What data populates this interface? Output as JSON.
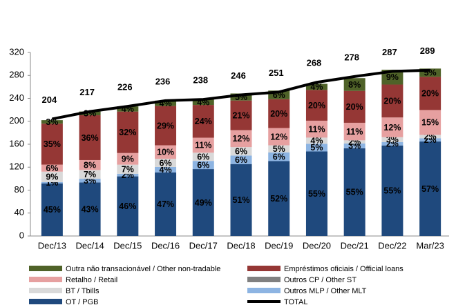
{
  "chart_data": {
    "type": "stacked_bar",
    "categories": [
      "Dec/13",
      "Dec/14",
      "Dec/15",
      "Dec/16",
      "Dec/17",
      "Dec/18",
      "Dec/19",
      "Dec/20",
      "Dec/21",
      "Dec/22",
      "Mar/23"
    ],
    "series": [
      {
        "name": "OT / PGB",
        "color": "#1f497d",
        "label_color": "#ffffff",
        "values": [
          45,
          43,
          46,
          47,
          49,
          51,
          52,
          55,
          55,
          55,
          57
        ],
        "value_labels": [
          "45%",
          "43%",
          "46%",
          "47%",
          "49%",
          "51%",
          "52%",
          "55%",
          "55%",
          "55%",
          "57%"
        ]
      },
      {
        "name": "Outros MLP / Other MLT",
        "color": "#8db4e2",
        "label_color": "#ffffff",
        "values": [
          1,
          3,
          2,
          4,
          6,
          6,
          6,
          5,
          3,
          2,
          2
        ],
        "value_labels": [
          "1%",
          "3%",
          "2%",
          "4%",
          "6%",
          "6%",
          "6%",
          "5%",
          "3%",
          "2%",
          "2%"
        ]
      },
      {
        "name": "BT / Tbills",
        "color": "#d9d9d9",
        "label_color": "#000000",
        "values": [
          9,
          7,
          7,
          6,
          6,
          6,
          5,
          4,
          2,
          3,
          2
        ],
        "value_labels": [
          "9%",
          "7%",
          "7%",
          "6%",
          "6%",
          "6%",
          "5%",
          "4%",
          "2%",
          "3%",
          "2%"
        ]
      },
      {
        "name": "Outros CP / Other ST",
        "color": "#808080",
        "label_color": "#ffffff",
        "values": [
          null,
          null,
          null,
          null,
          null,
          null,
          null,
          null,
          null,
          null,
          null
        ],
        "value_labels": [
          null,
          null,
          null,
          null,
          null,
          null,
          null,
          null,
          null,
          null,
          null
        ]
      },
      {
        "name": "Retalho / Retail",
        "color": "#e6a0a0",
        "label_color": "#ffffff",
        "values": [
          6,
          8,
          9,
          10,
          11,
          12,
          12,
          11,
          11,
          12,
          15
        ],
        "value_labels": [
          "6%",
          "8%",
          "9%",
          "10%",
          "11%",
          "12%",
          "12%",
          "11%",
          "11%",
          "12%",
          "15%"
        ]
      },
      {
        "name": "Empréstimos oficiais / Official loans",
        "color": "#953735",
        "label_color": "#ffffff",
        "values": [
          35,
          36,
          32,
          29,
          24,
          21,
          20,
          20,
          20,
          20,
          20
        ],
        "value_labels": [
          "35%",
          "36%",
          "32%",
          "29%",
          "24%",
          "21%",
          "20%",
          "20%",
          "20%",
          "20%",
          "20%"
        ]
      },
      {
        "name": "Outra não transacionável / Other non-tradable",
        "color": "#4f6228",
        "label_color": "#ffffff",
        "values": [
          3,
          3,
          4,
          4,
          4,
          5,
          6,
          4,
          8,
          9,
          5
        ],
        "value_labels": [
          "3%",
          "3%",
          "4%",
          "4%",
          "4%",
          "5%",
          "6%",
          "4%",
          "8%",
          "9%",
          "5%"
        ]
      }
    ],
    "total": {
      "name": "TOTAL",
      "color": "#000000",
      "values": [
        204,
        217,
        226,
        236,
        238,
        246,
        251,
        268,
        278,
        287,
        289
      ]
    },
    "ylim": [
      0,
      320
    ],
    "yticks": [
      0,
      40,
      80,
      120,
      160,
      200,
      240,
      280,
      320
    ]
  }
}
